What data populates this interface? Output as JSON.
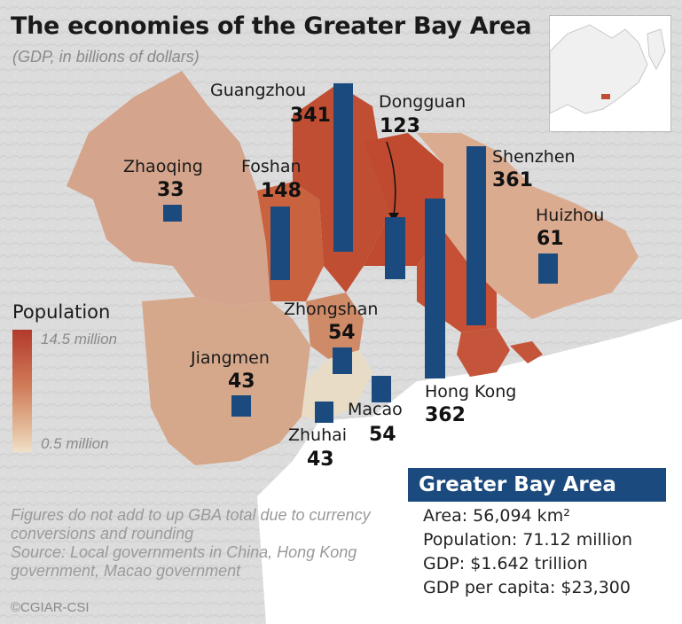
{
  "header": {
    "title": "The economies of the Greater Bay Area",
    "subtitle": "(GDP, in billions of dollars)"
  },
  "colors": {
    "bar": "#1b4a7e",
    "pop_high": "#b23a2b",
    "pop_low": "#efe0c8"
  },
  "cities": [
    {
      "name": "Guangzhou",
      "gdp": "341"
    },
    {
      "name": "Dongguan",
      "gdp": "123"
    },
    {
      "name": "Zhaoqing",
      "gdp": "33"
    },
    {
      "name": "Foshan",
      "gdp": "148"
    },
    {
      "name": "Shenzhen",
      "gdp": "361"
    },
    {
      "name": "Huizhou",
      "gdp": "61"
    },
    {
      "name": "Zhongshan",
      "gdp": "54"
    },
    {
      "name": "Jiangmen",
      "gdp": "43"
    },
    {
      "name": "Hong Kong",
      "gdp": "362"
    },
    {
      "name": "Macao",
      "gdp": "54"
    },
    {
      "name": "Zhuhai",
      "gdp": "43"
    }
  ],
  "legend": {
    "title": "Population",
    "max": "14.5 million",
    "min": "0.5 million"
  },
  "footer": {
    "note": "Figures do not add to up GBA total due to currency conversions and rounding",
    "source": "Source: Local governments in China, Hong Kong government, Macao government",
    "credit": "©CGIAR-CSI"
  },
  "summary": {
    "title": "Greater Bay Area",
    "area": "Area: 56,094 km²",
    "population": "Population: 71.12 million",
    "gdp": "GDP: $1.642 trillion",
    "gdp_per_capita": "GDP per capita: $23,300"
  }
}
